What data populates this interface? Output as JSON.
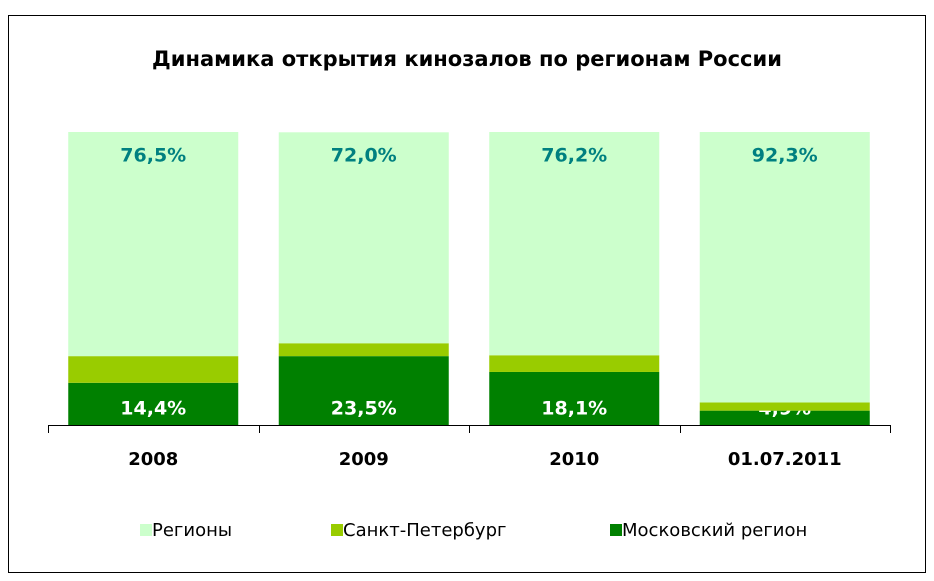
{
  "chart_data": {
    "type": "stacked_bar",
    "title": "Динамика открытия кинозалов по регионам России",
    "categories": [
      "2008",
      "2009",
      "2010",
      "01.07.2011"
    ],
    "ylim": [
      0,
      100
    ],
    "series": [
      {
        "name": "Московский регион",
        "color": "#008000",
        "label_color": "#ffffff",
        "values": [
          14.4,
          23.5,
          18.1,
          4.9
        ],
        "value_labels": [
          "14,4%",
          "23,5%",
          "18,1%",
          "4,9%"
        ]
      },
      {
        "name": "Санкт-Петербург",
        "color": "#99cc00",
        "label_color": "#669900",
        "values": [
          9.1,
          4.4,
          5.7,
          2.8
        ],
        "value_labels": [
          "9,1%",
          "4,4%",
          "5,7%",
          "2,8%"
        ]
      },
      {
        "name": "Регионы",
        "color": "#ccffcc",
        "label_color": "#008080",
        "values": [
          76.5,
          72.0,
          76.2,
          92.3
        ],
        "value_labels": [
          "76,5%",
          "72,0%",
          "76,2%",
          "92,3%"
        ]
      }
    ]
  }
}
